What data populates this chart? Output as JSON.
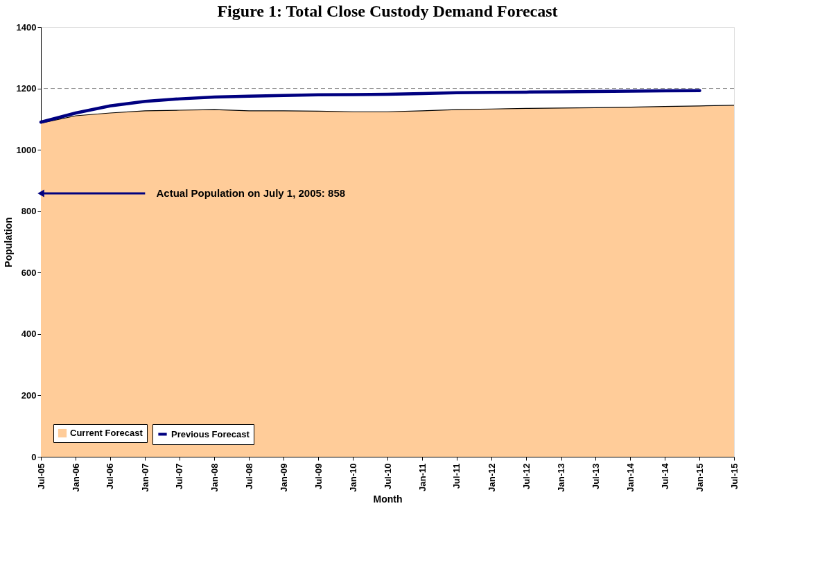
{
  "chart_data": {
    "type": "area",
    "title": "Figure 1:  Total Close Custody Demand Forecast",
    "xlabel": "Month",
    "ylabel": "Population",
    "x": [
      "2005-07",
      "2006-01",
      "2006-07",
      "2007-01",
      "2007-07",
      "2008-01",
      "2008-07",
      "2009-01",
      "2009-07",
      "2010-01",
      "2010-07",
      "2011-01",
      "2011-07",
      "2012-01",
      "2012-07",
      "2013-01",
      "2013-07",
      "2014-01",
      "2014-07",
      "2015-01",
      "2015-07"
    ],
    "series": [
      {
        "name": "Current Forecast",
        "color": "#ffcc99",
        "values": [
          1087,
          1111,
          1120,
          1127,
          1129,
          1131,
          1127,
          1127,
          1126,
          1124,
          1124,
          1127,
          1131,
          1133,
          1135,
          1136,
          1137,
          1139,
          1141,
          1143,
          1145
        ]
      },
      {
        "name": "Previous Forecast",
        "type": "line",
        "color": "#000080",
        "values": [
          1090,
          1120,
          1143,
          1158,
          1166,
          1172,
          1175,
          1177,
          1179,
          1180,
          1181,
          1183,
          1186,
          1187,
          1188,
          1189,
          1190,
          1191,
          1192,
          1193,
          null
        ]
      }
    ],
    "xlim": [
      "2005-07",
      "2015-07"
    ],
    "xticks": [
      {
        "value": "2005-07",
        "label": "Jul-05"
      },
      {
        "value": "2006-01",
        "label": "Jan-06"
      },
      {
        "value": "2006-07",
        "label": "Jul-06"
      },
      {
        "value": "2007-01",
        "label": "Jan-07"
      },
      {
        "value": "2007-07",
        "label": "Jul-07"
      },
      {
        "value": "2008-01",
        "label": "Jan-08"
      },
      {
        "value": "2008-07",
        "label": "Jul-08"
      },
      {
        "value": "2009-01",
        "label": "Jan-09"
      },
      {
        "value": "2009-07",
        "label": "Jul-09"
      },
      {
        "value": "2010-01",
        "label": "Jan-10"
      },
      {
        "value": "2010-07",
        "label": "Jul-10"
      },
      {
        "value": "2011-01",
        "label": "Jan-11"
      },
      {
        "value": "2011-07",
        "label": "Jul-11"
      },
      {
        "value": "2012-01",
        "label": "Jan-12"
      },
      {
        "value": "2012-07",
        "label": "Jul-12"
      },
      {
        "value": "2013-01",
        "label": "Jan-13"
      },
      {
        "value": "2013-07",
        "label": "Jul-13"
      },
      {
        "value": "2014-01",
        "label": "Jan-14"
      },
      {
        "value": "2014-07",
        "label": "Jul-14"
      },
      {
        "value": "2015-01",
        "label": "Jan-15"
      },
      {
        "value": "2015-07",
        "label": "Jul-15"
      }
    ],
    "ylim": [
      0,
      1400
    ],
    "yticks": [
      0,
      200,
      400,
      600,
      800,
      1000,
      1200,
      1400
    ],
    "ref_lines": [
      {
        "axis": "y",
        "value": 1200,
        "color": "#808080",
        "line_style": "dashed"
      }
    ],
    "annotations": [
      {
        "text": "Actual Population on July 1, 2005: 858",
        "x": "2005-07",
        "y": 858
      }
    ],
    "legend": "bottom left",
    "grid": false,
    "marker": "none"
  }
}
